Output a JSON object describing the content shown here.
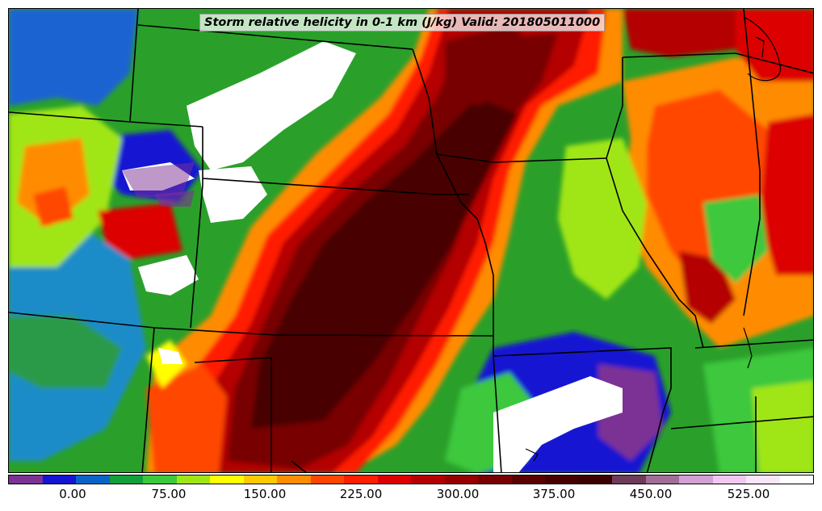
{
  "title": "Storm relative helicity in 0-1 km (J/kg) Valid: 201805011000",
  "colorbar": {
    "ticks": [
      "0.00",
      "75.00",
      "150.00",
      "225.00",
      "300.00",
      "375.00",
      "450.00",
      "525.00"
    ],
    "colors": [
      "#7b3294",
      "#1414d2",
      "#0a64c8",
      "#12a03c",
      "#3cc83c",
      "#a0e614",
      "#ffff00",
      "#ffc800",
      "#ff8c00",
      "#ff4600",
      "#ff1e00",
      "#dc0000",
      "#b40000",
      "#960000",
      "#780000",
      "#5a0000",
      "#460000",
      "#3c0000",
      "#6e3c5a",
      "#a06e96",
      "#d2a0d2",
      "#f0c8f0",
      "#fae6fa",
      "#ffffff"
    ]
  },
  "map": {
    "layers": [
      "contour-fill",
      "state-borders",
      "coastlines"
    ],
    "legend_colors": {
      "low": "#7b3294",
      "mid": "#3cc83c",
      "high": "#960000",
      "extreme": "#ffffff"
    }
  }
}
